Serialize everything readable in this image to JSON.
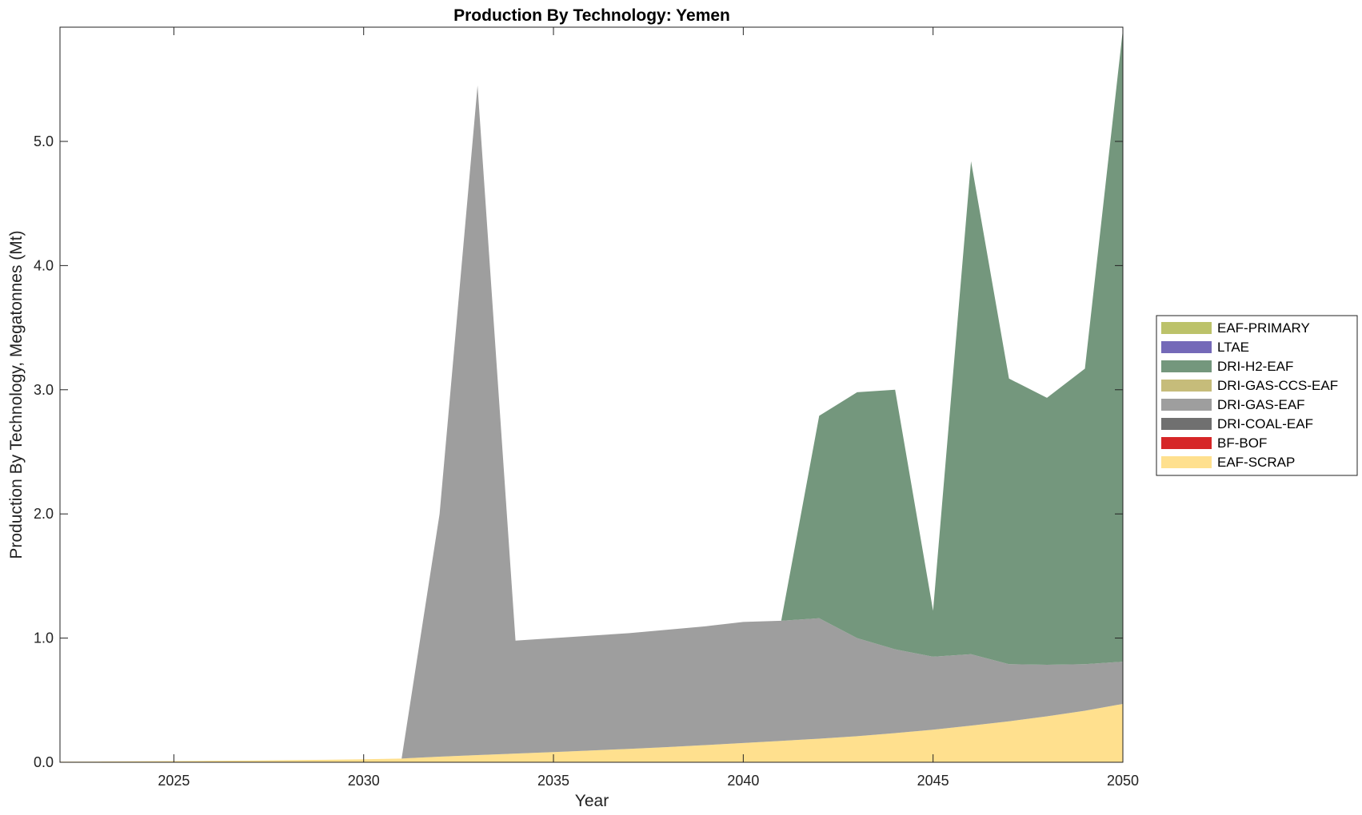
{
  "chart_data": {
    "type": "area",
    "stacked": true,
    "title": "Production By Technology: Yemen",
    "xlabel": "Year",
    "ylabel": "Production By Technology, Megatonnes (Mt)",
    "xlim": [
      2022,
      2050
    ],
    "ylim": [
      0,
      5.92
    ],
    "xticks": [
      "2025",
      "2030",
      "2035",
      "2040",
      "2045",
      "2050"
    ],
    "yticks": [
      "0.0",
      "1.0",
      "2.0",
      "3.0",
      "4.0",
      "5.0"
    ],
    "grid": false,
    "legend_position": "right",
    "x": [
      2022,
      2023,
      2024,
      2025,
      2026,
      2027,
      2028,
      2029,
      2030,
      2031,
      2032,
      2033,
      2034,
      2035,
      2036,
      2037,
      2038,
      2039,
      2040,
      2041,
      2042,
      2043,
      2044,
      2045,
      2046,
      2047,
      2048,
      2049,
      2050
    ],
    "series": [
      {
        "name": "EAF-SCRAP",
        "color": "#FFE08E",
        "values": [
          0.005,
          0.006,
          0.008,
          0.01,
          0.012,
          0.014,
          0.017,
          0.02,
          0.024,
          0.03,
          0.045,
          0.058,
          0.07,
          0.082,
          0.095,
          0.108,
          0.122,
          0.138,
          0.155,
          0.172,
          0.19,
          0.21,
          0.235,
          0.262,
          0.295,
          0.33,
          0.37,
          0.415,
          0.47
        ]
      },
      {
        "name": "BF-BOF",
        "color": "#D62728",
        "values": [
          0,
          0,
          0,
          0,
          0,
          0,
          0,
          0,
          0,
          0,
          0,
          0,
          0,
          0,
          0,
          0,
          0,
          0,
          0,
          0,
          0,
          0,
          0,
          0,
          0,
          0,
          0,
          0,
          0
        ]
      },
      {
        "name": "DRI-COAL-EAF",
        "color": "#707070",
        "values": [
          0,
          0,
          0,
          0,
          0,
          0,
          0,
          0,
          0,
          0,
          0,
          0,
          0,
          0,
          0,
          0,
          0,
          0,
          0,
          0,
          0,
          0,
          0,
          0,
          0,
          0,
          0,
          0,
          0
        ]
      },
      {
        "name": "DRI-GAS-EAF",
        "color": "#9E9E9E",
        "values": [
          0,
          0,
          0,
          0,
          0,
          0,
          0,
          0,
          0,
          0,
          1.955,
          5.392,
          0.91,
          0.918,
          0.925,
          0.932,
          0.945,
          0.957,
          0.975,
          0.968,
          0.97,
          0.79,
          0.675,
          0.588,
          0.575,
          0.46,
          0.415,
          0.375,
          0.34
        ]
      },
      {
        "name": "DRI-GAS-CCS-EAF",
        "color": "#C6BC7A",
        "values": [
          0,
          0,
          0,
          0,
          0,
          0,
          0,
          0,
          0,
          0,
          0,
          0,
          0,
          0,
          0,
          0,
          0,
          0,
          0,
          0,
          0,
          0,
          0,
          0,
          0,
          0,
          0,
          0,
          0
        ]
      },
      {
        "name": "DRI-H2-EAF",
        "color": "#74977D",
        "values": [
          0,
          0,
          0,
          0,
          0,
          0,
          0,
          0,
          0,
          0,
          0,
          0,
          0,
          0,
          0,
          0,
          0,
          0,
          0,
          0,
          1.63,
          1.98,
          2.09,
          0.37,
          3.97,
          2.3,
          2.15,
          2.38,
          5.09
        ]
      },
      {
        "name": "LTAE",
        "color": "#7469B8",
        "values": [
          0,
          0,
          0,
          0,
          0,
          0,
          0,
          0,
          0,
          0,
          0,
          0,
          0,
          0,
          0,
          0,
          0,
          0,
          0,
          0,
          0,
          0,
          0,
          0,
          0,
          0,
          0,
          0,
          0
        ]
      },
      {
        "name": "EAF-PRIMARY",
        "color": "#BCC26A",
        "values": [
          0,
          0,
          0,
          0,
          0,
          0,
          0,
          0,
          0,
          0,
          0,
          0,
          0,
          0,
          0,
          0,
          0,
          0,
          0,
          0,
          0,
          0,
          0,
          0,
          0,
          0,
          0,
          0,
          0
        ]
      }
    ],
    "legend_order": [
      "EAF-PRIMARY",
      "LTAE",
      "DRI-H2-EAF",
      "DRI-GAS-CCS-EAF",
      "DRI-GAS-EAF",
      "DRI-COAL-EAF",
      "BF-BOF",
      "EAF-SCRAP"
    ]
  }
}
